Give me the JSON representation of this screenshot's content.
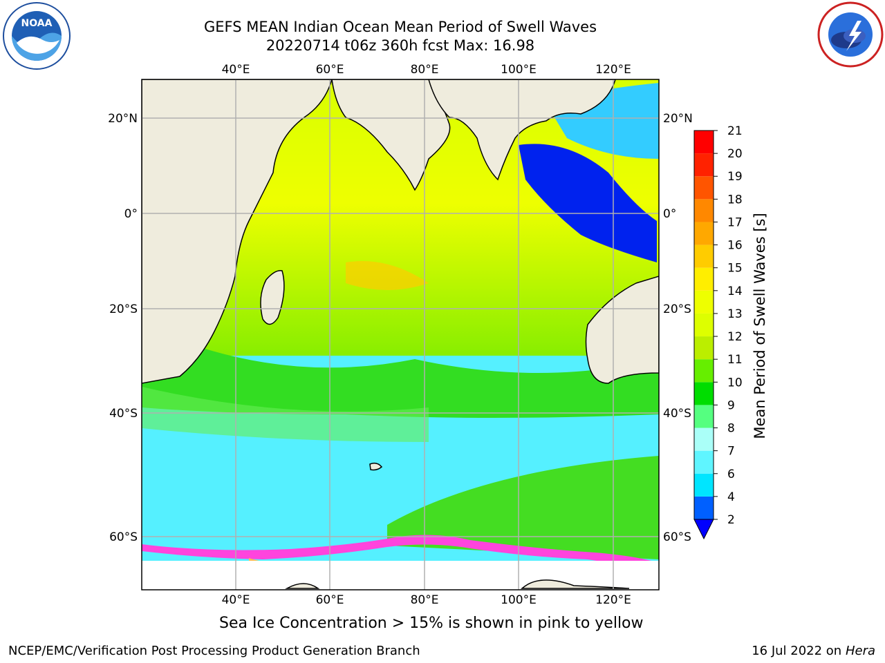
{
  "header": {
    "title_line1": "GEFS MEAN Indian Ocean Mean Period of Swell Waves",
    "title_line2": "20220714 t06z 360h fcst   Max: 16.98"
  },
  "logos": {
    "left": "noaa-logo",
    "left_text": "NOAA",
    "right": "nws-logo"
  },
  "map": {
    "projection": "cylindrical",
    "lon_range": [
      20,
      130
    ],
    "lat_range": [
      -70,
      28
    ],
    "lon_ticks": [
      "40°E",
      "60°E",
      "80°E",
      "100°E",
      "120°E"
    ],
    "lat_ticks": [
      "20°N",
      "0°",
      "20°S",
      "40°S",
      "60°S"
    ],
    "land_color": "#efecdd",
    "grid": true
  },
  "colorbar": {
    "label": "Mean Period of Swell Waves [s]",
    "ticks": [
      "2",
      "4",
      "6",
      "7",
      "8",
      "9",
      "10",
      "11",
      "12",
      "13",
      "14",
      "15",
      "16",
      "17",
      "18",
      "19",
      "20",
      "21"
    ],
    "colors": [
      "#0000ff",
      "#0060ff",
      "#00e5ff",
      "#5ff5ff",
      "#aafff8",
      "#55ff80",
      "#00dd00",
      "#66ee00",
      "#bbee00",
      "#ddff00",
      "#eeff00",
      "#ffee00",
      "#ffcc00",
      "#ffa800",
      "#ff8800",
      "#ff5500",
      "#ff2200",
      "#ff0000"
    ],
    "extend": "min"
  },
  "notes": {
    "ice": "Sea Ice Concentration > 15% is shown in pink to yellow",
    "credit": "NCEP/EMC/Verification Post Processing Product Generation Branch",
    "date": "16 Jul 2022 on ",
    "host": "Hera"
  }
}
